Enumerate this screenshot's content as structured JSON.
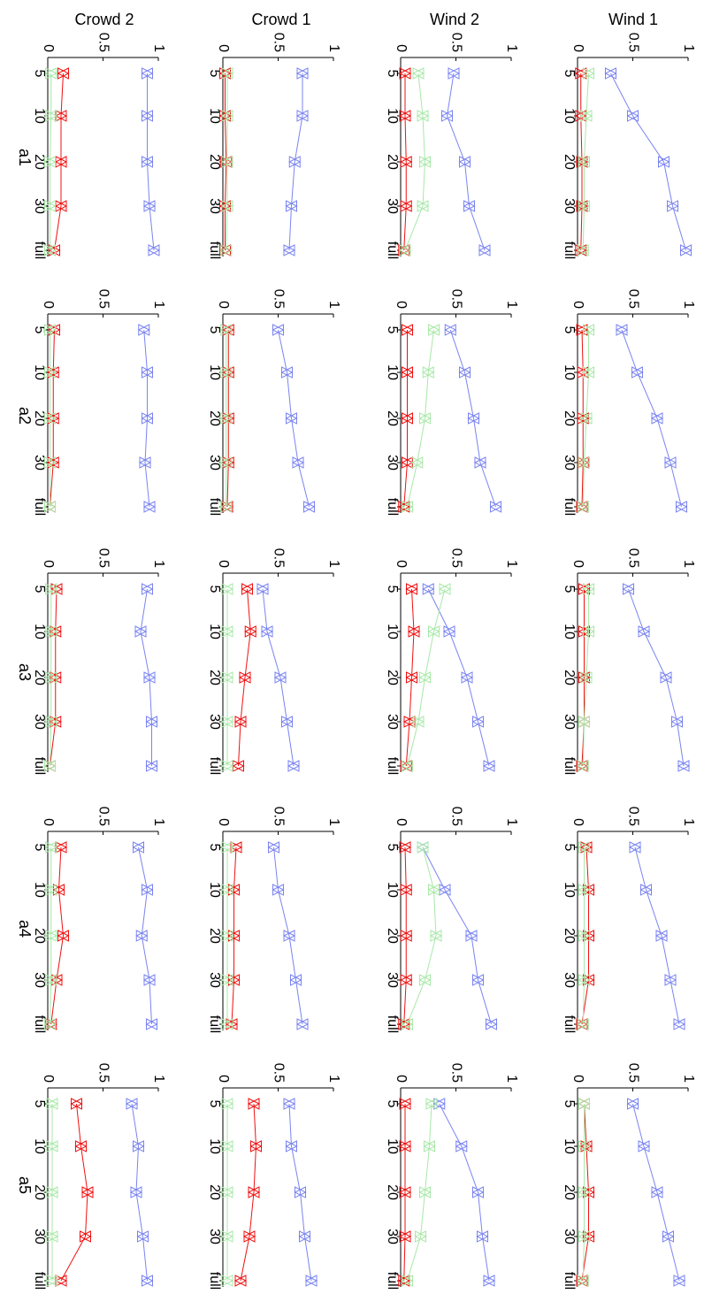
{
  "columns": [
    "Crowd 2",
    "Crowd 1",
    "Wind 2",
    "Wind 1"
  ],
  "rows": [
    "a1",
    "a2",
    "a3",
    "a4",
    "a5"
  ],
  "chart_data": {
    "type": "line",
    "categories": [
      "5",
      "10",
      "20",
      "30",
      "full"
    ],
    "yticks": [
      "0",
      "0.5",
      "1"
    ],
    "ylim": [
      0,
      1
    ],
    "marker": "triangle",
    "colors": {
      "blue": "#7a84f0",
      "red": "#f01010",
      "green": "#a8e8a8"
    },
    "panels": [
      {
        "column": "Crowd 2",
        "row": "a1",
        "blue": [
          0.9,
          0.9,
          0.9,
          0.92,
          0.96
        ],
        "red": [
          0.14,
          0.12,
          0.12,
          0.12,
          0.06
        ],
        "green": [
          0.03,
          0.03,
          0.02,
          0.02,
          0.02
        ]
      },
      {
        "column": "Crowd 2",
        "row": "a2",
        "blue": [
          0.87,
          0.9,
          0.9,
          0.88,
          0.92
        ],
        "red": [
          0.06,
          0.05,
          0.05,
          0.05,
          0.02
        ],
        "green": [
          0.02,
          0.02,
          0.02,
          0.02,
          0.02
        ]
      },
      {
        "column": "Crowd 2",
        "row": "a3",
        "blue": [
          0.9,
          0.84,
          0.92,
          0.94,
          0.94
        ],
        "red": [
          0.08,
          0.07,
          0.07,
          0.07,
          0.02
        ],
        "green": [
          0.03,
          0.03,
          0.03,
          0.03,
          0.02
        ]
      },
      {
        "column": "Crowd 2",
        "row": "a4",
        "blue": [
          0.82,
          0.9,
          0.85,
          0.92,
          0.94
        ],
        "red": [
          0.12,
          0.1,
          0.14,
          0.08,
          0.03
        ],
        "green": [
          0.03,
          0.03,
          0.03,
          0.03,
          0.02
        ]
      },
      {
        "column": "Crowd 2",
        "row": "a5",
        "blue": [
          0.76,
          0.82,
          0.8,
          0.86,
          0.9
        ],
        "red": [
          0.26,
          0.3,
          0.36,
          0.34,
          0.12
        ],
        "green": [
          0.04,
          0.04,
          0.04,
          0.04,
          0.04
        ]
      },
      {
        "column": "Crowd 1",
        "row": "a1",
        "blue": [
          0.72,
          0.72,
          0.65,
          0.62,
          0.6
        ],
        "red": [
          0.02,
          0.02,
          0.03,
          0.02,
          0.02
        ],
        "green": [
          0.04,
          0.04,
          0.04,
          0.04,
          0.03
        ]
      },
      {
        "column": "Crowd 1",
        "row": "a2",
        "blue": [
          0.5,
          0.58,
          0.62,
          0.68,
          0.78
        ],
        "red": [
          0.05,
          0.05,
          0.05,
          0.05,
          0.04
        ],
        "green": [
          0.03,
          0.03,
          0.03,
          0.03,
          0.03
        ]
      },
      {
        "column": "Crowd 1",
        "row": "a3",
        "blue": [
          0.36,
          0.4,
          0.52,
          0.58,
          0.64
        ],
        "red": [
          0.22,
          0.25,
          0.2,
          0.16,
          0.14
        ],
        "green": [
          0.04,
          0.04,
          0.04,
          0.04,
          0.04
        ]
      },
      {
        "column": "Crowd 1",
        "row": "a4",
        "blue": [
          0.46,
          0.5,
          0.6,
          0.66,
          0.72
        ],
        "red": [
          0.12,
          0.1,
          0.1,
          0.1,
          0.08
        ],
        "green": [
          0.04,
          0.04,
          0.04,
          0.04,
          0.04
        ]
      },
      {
        "column": "Crowd 1",
        "row": "a5",
        "blue": [
          0.6,
          0.62,
          0.7,
          0.74,
          0.8
        ],
        "red": [
          0.28,
          0.3,
          0.28,
          0.24,
          0.16
        ],
        "green": [
          0.04,
          0.04,
          0.04,
          0.04,
          0.04
        ]
      },
      {
        "column": "Wind 2",
        "row": "a1",
        "blue": [
          0.48,
          0.42,
          0.58,
          0.62,
          0.76
        ],
        "red": [
          0.04,
          0.04,
          0.05,
          0.05,
          0.03
        ],
        "green": [
          0.16,
          0.2,
          0.22,
          0.2,
          0.04
        ]
      },
      {
        "column": "Wind 2",
        "row": "a2",
        "blue": [
          0.45,
          0.58,
          0.66,
          0.72,
          0.86
        ],
        "red": [
          0.06,
          0.06,
          0.06,
          0.06,
          0.03
        ],
        "green": [
          0.3,
          0.25,
          0.22,
          0.15,
          0.06
        ]
      },
      {
        "column": "Wind 2",
        "row": "a3",
        "blue": [
          0.25,
          0.44,
          0.6,
          0.7,
          0.8
        ],
        "red": [
          0.1,
          0.12,
          0.1,
          0.08,
          0.05
        ],
        "green": [
          0.4,
          0.3,
          0.22,
          0.16,
          0.06
        ]
      },
      {
        "column": "Wind 2",
        "row": "a4",
        "blue": [
          0.2,
          0.4,
          0.64,
          0.7,
          0.82
        ],
        "red": [
          0.04,
          0.05,
          0.05,
          0.05,
          0.03
        ],
        "green": [
          0.2,
          0.3,
          0.32,
          0.22,
          0.06
        ]
      },
      {
        "column": "Wind 2",
        "row": "a5",
        "blue": [
          0.35,
          0.55,
          0.7,
          0.74,
          0.8
        ],
        "red": [
          0.04,
          0.04,
          0.04,
          0.04,
          0.03
        ],
        "green": [
          0.28,
          0.26,
          0.22,
          0.18,
          0.06
        ]
      },
      {
        "column": "Wind 1",
        "row": "a1",
        "blue": [
          0.3,
          0.5,
          0.78,
          0.86,
          0.98
        ],
        "red": [
          0.03,
          0.03,
          0.04,
          0.04,
          0.03
        ],
        "green": [
          0.1,
          0.08,
          0.06,
          0.06,
          0.05
        ]
      },
      {
        "column": "Wind 1",
        "row": "a2",
        "blue": [
          0.4,
          0.54,
          0.72,
          0.84,
          0.94
        ],
        "red": [
          0.04,
          0.05,
          0.05,
          0.05,
          0.04
        ],
        "green": [
          0.1,
          0.1,
          0.08,
          0.06,
          0.05
        ]
      },
      {
        "column": "Wind 1",
        "row": "a3",
        "blue": [
          0.46,
          0.6,
          0.8,
          0.9,
          0.96
        ],
        "red": [
          0.06,
          0.06,
          0.06,
          0.06,
          0.04
        ],
        "green": [
          0.1,
          0.1,
          0.08,
          0.06,
          0.05
        ]
      },
      {
        "column": "Wind 1",
        "row": "a4",
        "blue": [
          0.52,
          0.62,
          0.76,
          0.84,
          0.92
        ],
        "red": [
          0.08,
          0.1,
          0.1,
          0.1,
          0.04
        ],
        "green": [
          0.06,
          0.06,
          0.06,
          0.06,
          0.05
        ]
      },
      {
        "column": "Wind 1",
        "row": "a5",
        "blue": [
          0.5,
          0.6,
          0.72,
          0.82,
          0.92
        ],
        "red": [
          0.06,
          0.08,
          0.1,
          0.1,
          0.04
        ],
        "green": [
          0.06,
          0.06,
          0.06,
          0.06,
          0.05
        ]
      }
    ]
  }
}
